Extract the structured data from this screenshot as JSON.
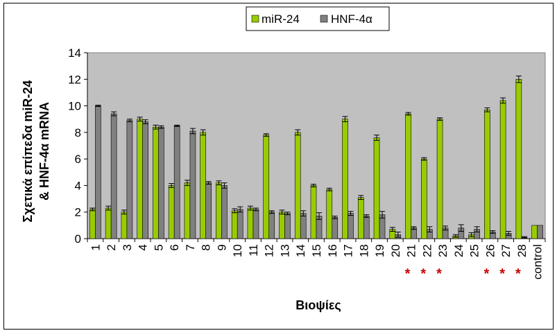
{
  "chart_data": {
    "type": "bar",
    "title": "",
    "xlabel": "Βιοψίες",
    "ylabel_line1": "Σχετικά επίπεδα miR-24",
    "ylabel_line2": "& HNF-4α mRNA",
    "ylim": [
      0,
      14
    ],
    "yticks": [
      "0",
      "2",
      "4",
      "6",
      "8",
      "10",
      "12",
      "14"
    ],
    "grid": false,
    "legend_position": "top",
    "plot_background": "#c0c0c0",
    "categories": [
      "1",
      "2",
      "3",
      "4",
      "5",
      "6",
      "7",
      "8",
      "9",
      "10",
      "11",
      "12",
      "13",
      "14",
      "15",
      "16",
      "17",
      "18",
      "19",
      "20",
      "21",
      "22",
      "23",
      "24",
      "25",
      "26",
      "27",
      "28",
      "control"
    ],
    "series": [
      {
        "name": "miR-24",
        "color": "#99cc00",
        "values": [
          2.2,
          2.3,
          2.0,
          9.0,
          8.4,
          4.0,
          4.2,
          8.0,
          4.2,
          2.1,
          2.3,
          7.8,
          2.0,
          8.0,
          4.0,
          3.7,
          9.0,
          3.1,
          7.6,
          0.7,
          9.4,
          6.0,
          9.0,
          0.2,
          0.3,
          9.7,
          10.4,
          12.0,
          1.0
        ],
        "errors": [
          0.1,
          0.15,
          0.15,
          0.15,
          0.15,
          0.15,
          0.2,
          0.2,
          0.15,
          0.15,
          0.15,
          0.1,
          0.15,
          0.2,
          0.1,
          0.1,
          0.2,
          0.15,
          0.2,
          0.15,
          0.1,
          0.1,
          0.1,
          0.1,
          0.15,
          0.15,
          0.2,
          0.25,
          0
        ]
      },
      {
        "name": "HNF-4α",
        "color": "#808080",
        "values": [
          10.0,
          9.4,
          8.9,
          8.8,
          8.4,
          8.5,
          8.1,
          4.2,
          4.0,
          2.2,
          2.2,
          2.0,
          1.9,
          1.9,
          1.7,
          1.6,
          1.9,
          1.7,
          1.8,
          0.3,
          0.8,
          0.7,
          0.8,
          0.8,
          0.7,
          0.5,
          0.4,
          0.1,
          1.0
        ],
        "errors": [
          0.05,
          0.15,
          0.1,
          0.15,
          0.1,
          0.05,
          0.2,
          0.1,
          0.2,
          0.2,
          0.1,
          0.1,
          0.1,
          0.2,
          0.25,
          0.1,
          0.15,
          0.1,
          0.25,
          0.2,
          0.1,
          0.2,
          0.15,
          0.25,
          0.2,
          0.1,
          0.15,
          0.05,
          0
        ]
      }
    ],
    "significance_marker": "*",
    "significance_color": "#cc0000",
    "significant_categories": [
      "21",
      "22",
      "23",
      "26",
      "27",
      "28"
    ]
  }
}
